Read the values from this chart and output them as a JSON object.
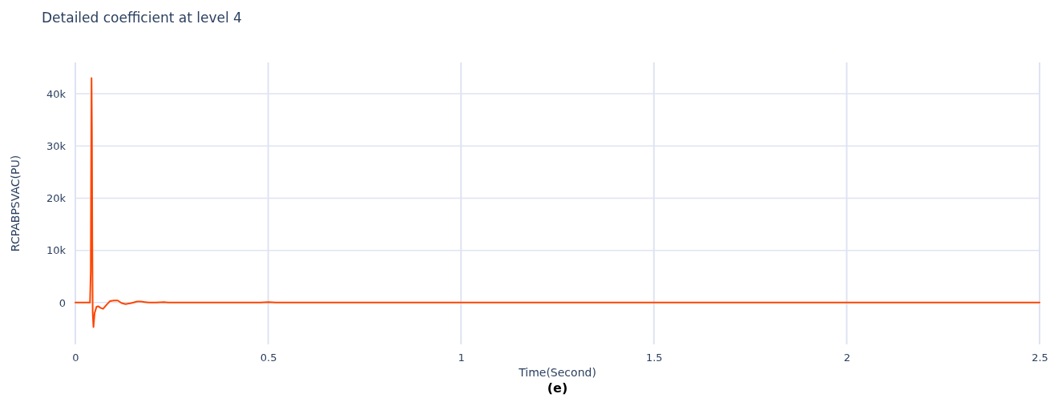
{
  "chart_data": {
    "type": "line",
    "title": "Detailed coefficient at level 4",
    "xlabel": "Time(Second)",
    "ylabel": "RCPABPSVAC(PU)",
    "annotations": [
      "(e)"
    ],
    "series": [
      {
        "color": "#ff4500",
        "x": [
          0,
          0.038,
          0.04,
          0.041,
          0.042,
          0.043,
          0.044,
          0.045,
          0.047,
          0.05,
          0.055,
          0.06,
          0.065,
          0.072,
          0.08,
          0.09,
          0.1,
          0.11,
          0.12,
          0.13,
          0.145,
          0.16,
          0.17,
          0.18,
          0.19,
          0.21,
          0.23,
          0.24,
          0.26,
          0.3,
          0.4,
          0.48,
          0.5,
          0.52,
          0.6,
          0.8,
          1.0,
          1.5,
          2.0,
          2.5
        ],
        "values": [
          0,
          0,
          6000,
          27000,
          43000,
          33000,
          12000,
          -2000,
          -4700,
          -2000,
          -800,
          -700,
          -1000,
          -1200,
          -500,
          300,
          400,
          400,
          -100,
          -300,
          -100,
          200,
          200,
          100,
          0,
          0,
          100,
          0,
          0,
          0,
          0,
          0,
          100,
          0,
          0,
          0,
          0,
          0,
          0,
          0
        ]
      }
    ],
    "xlim": [
      0,
      2.5
    ],
    "xticks": [
      0,
      0.5,
      1,
      1.5,
      2,
      2.5
    ],
    "ylim": [
      -8000,
      46000
    ],
    "yticks": [
      {
        "value": 0,
        "label": "0"
      },
      {
        "value": 10000,
        "label": "10k"
      },
      {
        "value": 20000,
        "label": "20k"
      },
      {
        "value": 30000,
        "label": "30k"
      },
      {
        "value": 40000,
        "label": "40k"
      }
    ],
    "grid": true,
    "line_style": "solid",
    "marker": "none"
  }
}
